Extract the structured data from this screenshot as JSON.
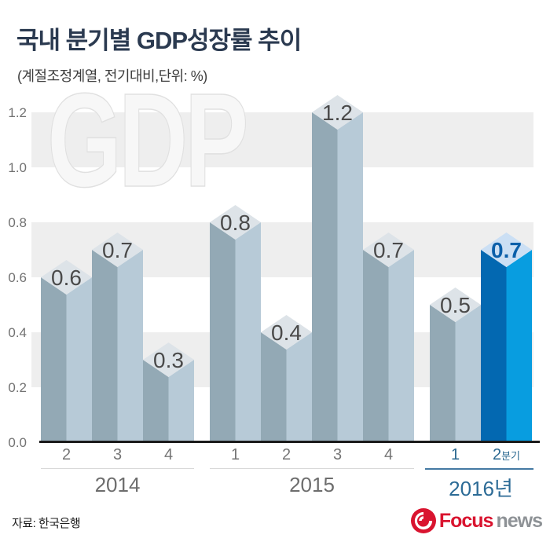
{
  "title": "국내 분기별 GDP성장률 추이",
  "subtitle": "(계절조정계열, 전기대비,단위: %)",
  "watermark": "GDP",
  "source": "자료: 한국은행",
  "logo": {
    "icon": "focus-swirl-icon",
    "focus": "Focus",
    "news": "news"
  },
  "colors": {
    "title": "#2b3a50",
    "band": "#eeeeee",
    "bar_left": "#93a9b5",
    "bar_right": "#b7cad7",
    "bar_top": "#dde3e8",
    "value_label": "#4a4a4a",
    "highlight_left": "#0368b1",
    "highlight_right": "#089de0",
    "highlight_top": "#cbdff4",
    "highlight_label": "#0b5fa9",
    "axis_text": "#727272",
    "accent_text": "#2c6b96",
    "divider": "#d9d9d9",
    "accent_divider": "#4479a3",
    "baseline": "#1b1b1b",
    "logo_red": "#d9142f",
    "logo_gray": "#8e9296"
  },
  "chart_data": {
    "type": "bar",
    "style": "isometric-3d-columns",
    "title": "국내 분기별 GDP성장률 추이",
    "subtitle": "(계절조정계열, 전기대비,단위: %)",
    "unit": "%",
    "ylim": [
      0,
      1.2
    ],
    "ytick_step": 0.2,
    "yticks": [
      "0.0",
      "0.2",
      "0.4",
      "0.6",
      "0.8",
      "1.0",
      "1.2"
    ],
    "grid": "alternating horizontal gray bands (1.0-1.2, 0.6-0.8, 0.2-0.4)",
    "legend": "none",
    "groups": [
      {
        "year": "2014",
        "quarters": [
          "2",
          "3",
          "4"
        ],
        "values": [
          0.6,
          0.7,
          0.3
        ],
        "accent": false
      },
      {
        "year": "2015",
        "quarters": [
          "1",
          "2",
          "3",
          "4"
        ],
        "values": [
          0.8,
          0.4,
          1.2,
          0.7
        ],
        "accent": false
      },
      {
        "year": "2016년",
        "quarters": [
          "1",
          "2분기"
        ],
        "values": [
          0.5,
          0.7
        ],
        "accent": true,
        "highlight_last": true
      }
    ],
    "highlight": {
      "year": "2016",
      "quarter": "2분기",
      "value": 0.7,
      "note": "latest quarter shown in blue"
    }
  }
}
